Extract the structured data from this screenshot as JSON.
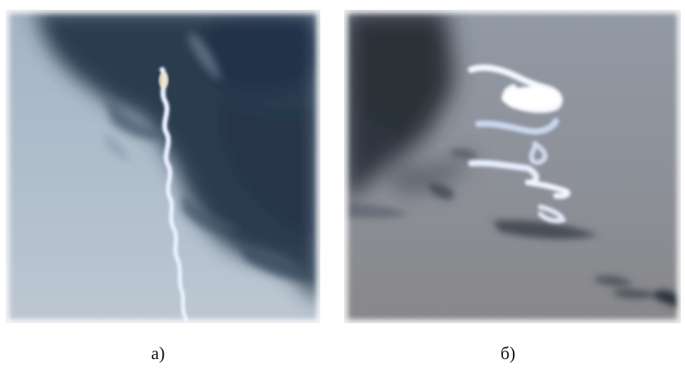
{
  "figure": {
    "panels": [
      {
        "id": "a",
        "label": "а)",
        "image": "sky-photo-vertical-trail",
        "colors": {
          "sky_top": "#a9b8c6",
          "sky_bottom": "#b8c4cf",
          "cloud_dark": "#2a3a4e",
          "cloud_mid": "#3f5268",
          "trail": "#f4f8ff"
        }
      },
      {
        "id": "b",
        "label": "б)",
        "image": "sky-photo-spiral-trail",
        "colors": {
          "sky_top": "#8f959f",
          "sky_bottom": "#8a8a8c",
          "cloud_dark": "#2f3640",
          "cloud_mid": "#4d5662",
          "trail": "#f2f6ff"
        }
      }
    ]
  }
}
